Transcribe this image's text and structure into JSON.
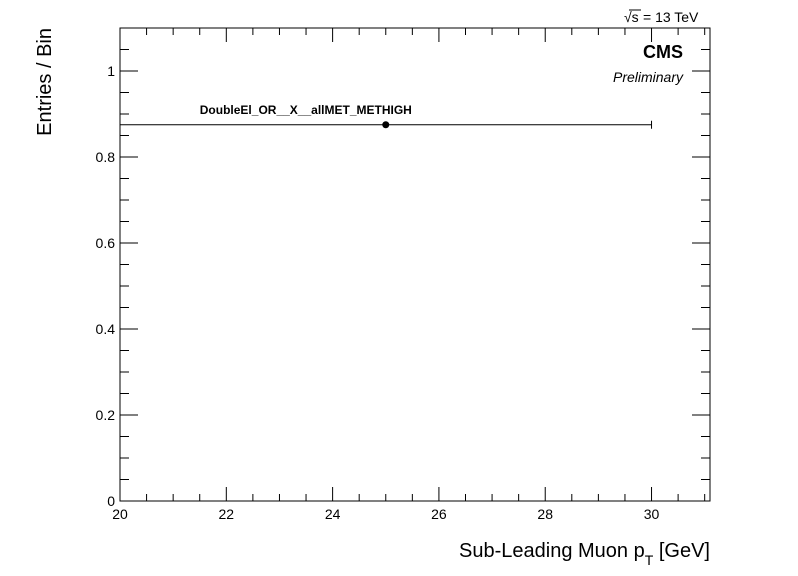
{
  "header": {
    "energy_label": "= 13 TeV",
    "sqrt_symbol": "√s",
    "experiment": "CMS",
    "status": "Preliminary"
  },
  "chart_data": {
    "type": "scatter",
    "title": "",
    "xlabel": "Sub-Leading Muon p",
    "xlabel_subscript": "T",
    "xlabel_unit": " [GeV]",
    "ylabel": "Entries / Bin",
    "xlim": [
      20,
      31.1
    ],
    "ylim": [
      0,
      1.1
    ],
    "x_ticks": [
      20,
      22,
      24,
      26,
      28,
      30
    ],
    "x_tick_labels": [
      "20",
      "22",
      "24",
      "26",
      "28",
      "30"
    ],
    "y_ticks": [
      0,
      0.2,
      0.4,
      0.6,
      0.8,
      1
    ],
    "y_tick_labels": [
      "0",
      "0.2",
      "0.4",
      "0.6",
      "0.8",
      "1"
    ],
    "grid": false,
    "series": [
      {
        "name": "DoubleEl_OR__X__allMET_METHIGH",
        "points": [
          {
            "x": 25,
            "y": 0.875,
            "xerr_low": 5,
            "xerr_high": 5
          }
        ],
        "color": "#000000"
      }
    ]
  }
}
